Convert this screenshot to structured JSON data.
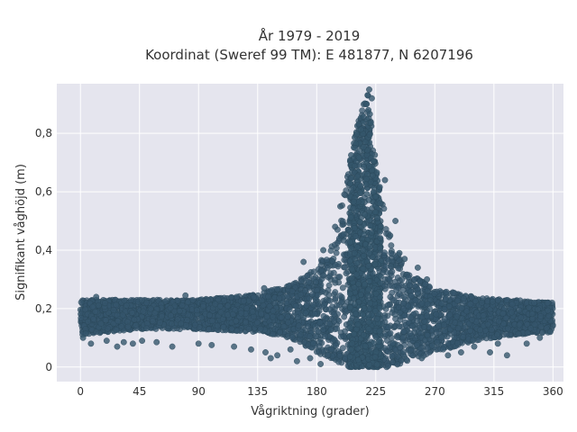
{
  "chart_data": {
    "type": "scatter",
    "title_line1": "År 1979 - 2019",
    "title_line2": "Koordinat (Sweref 99 TM): E 481877, N 6207196",
    "xlabel": "Vågriktning (grader)",
    "ylabel": "Signifikant våghöjd (m)",
    "xlim": [
      -18,
      368
    ],
    "ylim": [
      -0.05,
      0.97
    ],
    "xticks": [
      0,
      45,
      90,
      135,
      180,
      225,
      270,
      315,
      360
    ],
    "xtick_labels": [
      "0",
      "45",
      "90",
      "135",
      "180",
      "225",
      "270",
      "315",
      "360"
    ],
    "yticks": [
      0,
      0.2,
      0.4,
      0.6,
      0.8
    ],
    "ytick_labels": [
      "0",
      "0,2",
      "0,4",
      "0,6",
      "0,8"
    ],
    "grid": true,
    "legend": "none",
    "colors": {
      "background": "#e5e5ee",
      "grid": "#ffffff",
      "point": "#35566c",
      "point_edge": "#2a4658"
    },
    "envelope": [
      {
        "x": 0,
        "low": 0.11,
        "high": 0.23
      },
      {
        "x": 45,
        "low": 0.13,
        "high": 0.23
      },
      {
        "x": 90,
        "low": 0.13,
        "high": 0.23
      },
      {
        "x": 135,
        "low": 0.12,
        "high": 0.25
      },
      {
        "x": 160,
        "low": 0.1,
        "high": 0.28
      },
      {
        "x": 180,
        "low": 0.05,
        "high": 0.34
      },
      {
        "x": 195,
        "low": 0.02,
        "high": 0.45
      },
      {
        "x": 205,
        "low": 0.0,
        "high": 0.7
      },
      {
        "x": 212,
        "low": 0.0,
        "high": 0.85
      },
      {
        "x": 219,
        "low": 0.0,
        "high": 0.94
      },
      {
        "x": 225,
        "low": 0.0,
        "high": 0.7
      },
      {
        "x": 235,
        "low": 0.0,
        "high": 0.45
      },
      {
        "x": 250,
        "low": 0.02,
        "high": 0.32
      },
      {
        "x": 270,
        "low": 0.05,
        "high": 0.27
      },
      {
        "x": 300,
        "low": 0.09,
        "high": 0.24
      },
      {
        "x": 330,
        "low": 0.11,
        "high": 0.23
      },
      {
        "x": 360,
        "low": 0.12,
        "high": 0.22
      }
    ],
    "outliers": [
      {
        "x": 2,
        "y": 0.1
      },
      {
        "x": 8,
        "y": 0.08
      },
      {
        "x": 20,
        "y": 0.09
      },
      {
        "x": 28,
        "y": 0.07
      },
      {
        "x": 33,
        "y": 0.085
      },
      {
        "x": 40,
        "y": 0.08
      },
      {
        "x": 47,
        "y": 0.09
      },
      {
        "x": 58,
        "y": 0.085
      },
      {
        "x": 70,
        "y": 0.07
      },
      {
        "x": 90,
        "y": 0.08
      },
      {
        "x": 100,
        "y": 0.075
      },
      {
        "x": 117,
        "y": 0.07
      },
      {
        "x": 130,
        "y": 0.06
      },
      {
        "x": 141,
        "y": 0.05
      },
      {
        "x": 145,
        "y": 0.03
      },
      {
        "x": 150,
        "y": 0.04
      },
      {
        "x": 160,
        "y": 0.06
      },
      {
        "x": 165,
        "y": 0.02
      },
      {
        "x": 175,
        "y": 0.03
      },
      {
        "x": 183,
        "y": 0.01
      },
      {
        "x": 260,
        "y": 0.03
      },
      {
        "x": 280,
        "y": 0.04
      },
      {
        "x": 290,
        "y": 0.05
      },
      {
        "x": 300,
        "y": 0.07
      },
      {
        "x": 312,
        "y": 0.05
      },
      {
        "x": 318,
        "y": 0.08
      },
      {
        "x": 325,
        "y": 0.04
      },
      {
        "x": 340,
        "y": 0.08
      },
      {
        "x": 350,
        "y": 0.1
      },
      {
        "x": 358,
        "y": 0.12
      },
      {
        "x": 240,
        "y": 0.5
      },
      {
        "x": 236,
        "y": 0.45
      },
      {
        "x": 243,
        "y": 0.39
      },
      {
        "x": 257,
        "y": 0.34
      },
      {
        "x": 264,
        "y": 0.3
      },
      {
        "x": 247,
        "y": 0.37
      },
      {
        "x": 232,
        "y": 0.64
      },
      {
        "x": 228,
        "y": 0.56
      },
      {
        "x": 198,
        "y": 0.55
      },
      {
        "x": 194,
        "y": 0.48
      },
      {
        "x": 220,
        "y": 0.95
      },
      {
        "x": 222,
        "y": 0.92
      },
      {
        "x": 218,
        "y": 0.9
      },
      {
        "x": 170,
        "y": 0.36
      },
      {
        "x": 185,
        "y": 0.4
      },
      {
        "x": 12,
        "y": 0.24
      },
      {
        "x": 80,
        "y": 0.245
      },
      {
        "x": 140,
        "y": 0.27
      }
    ]
  }
}
